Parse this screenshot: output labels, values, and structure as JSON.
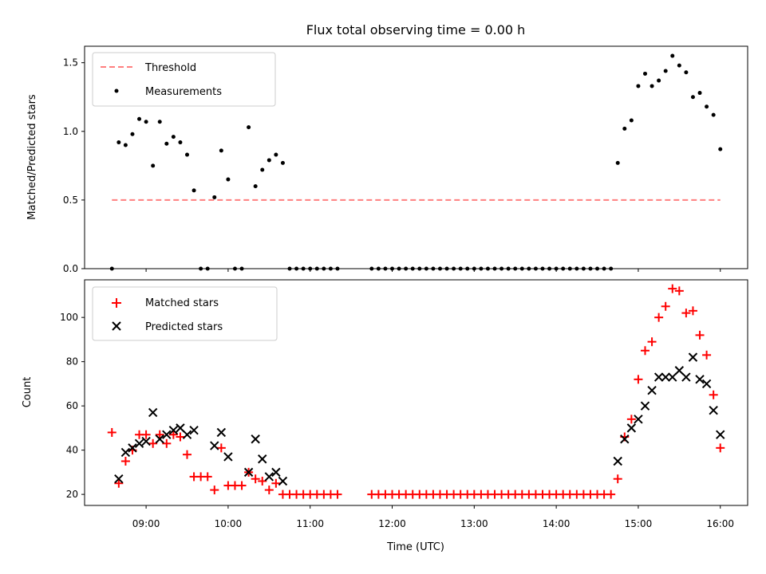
{
  "figure": {
    "title": "Flux total observing time = 0.00 h"
  },
  "chart_data": [
    {
      "type": "scatter",
      "ylabel": "Matched/Predicted stars",
      "ylim": [
        0,
        1.62
      ],
      "yticks": [
        0.0,
        0.5,
        1.0,
        1.5
      ],
      "ytick_labels": [
        "0.0",
        "0.5",
        "1.0",
        "1.5"
      ],
      "legend_placement": "top-left",
      "threshold": {
        "name": "Threshold",
        "color": "#ff7f7f",
        "value": 0.5,
        "x_start": "08:35",
        "x_end": "16:00"
      },
      "measurements": {
        "name": "Measurements",
        "color": "#000000",
        "x": [
          "08:35",
          "08:40",
          "08:45",
          "08:50",
          "08:55",
          "09:00",
          "09:05",
          "09:10",
          "09:15",
          "09:20",
          "09:25",
          "09:30",
          "09:35",
          "09:40",
          "09:45",
          "09:50",
          "09:55",
          "10:00",
          "10:05",
          "10:10",
          "10:15",
          "10:20",
          "10:25",
          "10:30",
          "10:35",
          "10:40",
          "10:45",
          "10:50",
          "10:55",
          "11:00",
          "11:05",
          "11:10",
          "11:15",
          "11:20",
          "11:45",
          "11:50",
          "11:55",
          "12:00",
          "12:05",
          "12:10",
          "12:15",
          "12:20",
          "12:25",
          "12:30",
          "12:35",
          "12:40",
          "12:45",
          "12:50",
          "12:55",
          "13:00",
          "13:05",
          "13:10",
          "13:15",
          "13:20",
          "13:25",
          "13:30",
          "13:35",
          "13:40",
          "13:45",
          "13:50",
          "13:55",
          "14:00",
          "14:05",
          "14:10",
          "14:15",
          "14:20",
          "14:25",
          "14:30",
          "14:35",
          "14:40",
          "14:45",
          "14:50",
          "14:55",
          "15:00",
          "15:05",
          "15:10",
          "15:15",
          "15:20",
          "15:25",
          "15:30",
          "15:35",
          "15:40",
          "15:45",
          "15:50",
          "15:55",
          "16:00"
        ],
        "y": [
          0.0,
          0.92,
          0.9,
          0.98,
          1.09,
          1.07,
          0.75,
          1.07,
          0.91,
          0.96,
          0.92,
          0.83,
          0.57,
          0.0,
          0.0,
          0.52,
          0.86,
          0.65,
          0.0,
          0.0,
          1.03,
          0.6,
          0.72,
          0.79,
          0.83,
          0.77,
          0.0,
          0.0,
          0.0,
          0.0,
          0.0,
          0.0,
          0.0,
          0.0,
          0.0,
          0.0,
          0.0,
          0.0,
          0.0,
          0.0,
          0.0,
          0.0,
          0.0,
          0.0,
          0.0,
          0.0,
          0.0,
          0.0,
          0.0,
          0.0,
          0.0,
          0.0,
          0.0,
          0.0,
          0.0,
          0.0,
          0.0,
          0.0,
          0.0,
          0.0,
          0.0,
          0.0,
          0.0,
          0.0,
          0.0,
          0.0,
          0.0,
          0.0,
          0.0,
          0.0,
          0.77,
          1.02,
          1.08,
          1.33,
          1.42,
          1.33,
          1.37,
          1.44,
          1.55,
          1.48,
          1.43,
          1.25,
          1.28,
          1.18,
          1.12,
          0.87
        ]
      }
    },
    {
      "type": "scatter",
      "xlabel": "Time (UTC)",
      "ylabel": "Count",
      "ylim": [
        15,
        117
      ],
      "yticks": [
        20,
        40,
        60,
        80,
        100
      ],
      "ytick_labels": [
        "20",
        "40",
        "60",
        "80",
        "100"
      ],
      "xlim": [
        "08:15",
        "16:20"
      ],
      "xticks": [
        "09:00",
        "10:00",
        "11:00",
        "12:00",
        "13:00",
        "14:00",
        "15:00",
        "16:00"
      ],
      "xtick_labels": [
        "09:00",
        "10:00",
        "11:00",
        "12:00",
        "13:00",
        "14:00",
        "15:00",
        "16:00"
      ],
      "legend_placement": "top-left",
      "series": [
        {
          "name": "Matched stars",
          "color": "#ff0000",
          "x": [
            "08:35",
            "08:40",
            "08:45",
            "08:50",
            "08:55",
            "09:00",
            "09:05",
            "09:10",
            "09:15",
            "09:20",
            "09:25",
            "09:30",
            "09:35",
            "09:40",
            "09:45",
            "09:50",
            "09:55",
            "10:00",
            "10:05",
            "10:10",
            "10:15",
            "10:20",
            "10:25",
            "10:30",
            "10:35",
            "10:40",
            "10:45",
            "10:50",
            "10:55",
            "11:00",
            "11:05",
            "11:10",
            "11:15",
            "11:20",
            "11:45",
            "11:50",
            "11:55",
            "12:00",
            "12:05",
            "12:10",
            "12:15",
            "12:20",
            "12:25",
            "12:30",
            "12:35",
            "12:40",
            "12:45",
            "12:50",
            "12:55",
            "13:00",
            "13:05",
            "13:10",
            "13:15",
            "13:20",
            "13:25",
            "13:30",
            "13:35",
            "13:40",
            "13:45",
            "13:50",
            "13:55",
            "14:00",
            "14:05",
            "14:10",
            "14:15",
            "14:20",
            "14:25",
            "14:30",
            "14:35",
            "14:40",
            "14:45",
            "14:50",
            "14:55",
            "15:00",
            "15:05",
            "15:10",
            "15:15",
            "15:20",
            "15:25",
            "15:30",
            "15:35",
            "15:40",
            "15:45",
            "15:50",
            "15:55",
            "16:00"
          ],
          "y": [
            48,
            25,
            35,
            40,
            47,
            47,
            43,
            47,
            43,
            47,
            46,
            38,
            28,
            28,
            28,
            22,
            41,
            24,
            24,
            24,
            30,
            27,
            26,
            22,
            25,
            20,
            20,
            20,
            20,
            20,
            20,
            20,
            20,
            20,
            20,
            20,
            20,
            20,
            20,
            20,
            20,
            20,
            20,
            20,
            20,
            20,
            20,
            20,
            20,
            20,
            20,
            20,
            20,
            20,
            20,
            20,
            20,
            20,
            20,
            20,
            20,
            20,
            20,
            20,
            20,
            20,
            20,
            20,
            20,
            20,
            27,
            46,
            54,
            72,
            85,
            89,
            100,
            105,
            113,
            112,
            102,
            103,
            92,
            83,
            65,
            41
          ]
        },
        {
          "name": "Predicted stars",
          "color": "#000000",
          "x": [
            "08:40",
            "08:45",
            "08:50",
            "08:55",
            "09:00",
            "09:05",
            "09:10",
            "09:15",
            "09:20",
            "09:25",
            "09:30",
            "09:35",
            "09:50",
            "09:55",
            "10:00",
            "10:15",
            "10:20",
            "10:25",
            "10:30",
            "10:35",
            "10:40",
            "14:45",
            "14:50",
            "14:55",
            "15:00",
            "15:05",
            "15:10",
            "15:15",
            "15:20",
            "15:25",
            "15:30",
            "15:35",
            "15:40",
            "15:45",
            "15:50",
            "15:55",
            "16:00"
          ],
          "y": [
            27,
            39,
            41,
            43,
            44,
            57,
            45,
            47,
            49,
            50,
            47,
            49,
            42,
            48,
            37,
            30,
            45,
            36,
            28,
            30,
            26,
            35,
            45,
            50,
            54,
            60,
            67,
            73,
            73,
            73,
            76,
            73,
            82,
            72,
            70,
            58,
            47
          ]
        }
      ]
    }
  ]
}
